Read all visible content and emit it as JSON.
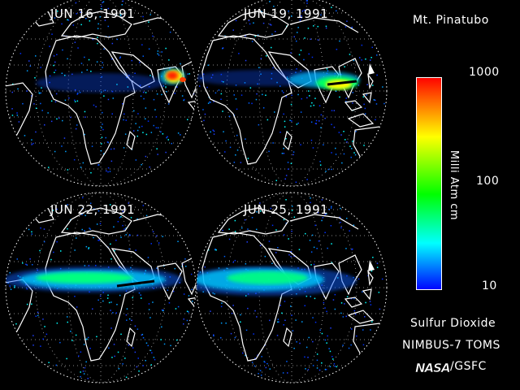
{
  "title": "Mt. Pinatubo",
  "panels": [
    {
      "date": "JUN 16, 1991"
    },
    {
      "date": "JUN 19, 1991"
    },
    {
      "date": "JUN 22, 1991"
    },
    {
      "date": "JUN 25, 1991"
    }
  ],
  "colorbar": {
    "max_label": "1000",
    "mid_label": "100",
    "min_label": "10",
    "units": "Milli Atm cm",
    "colors": [
      "#ff0000",
      "#ff8000",
      "#ffff00",
      "#00ff00",
      "#00ffff",
      "#0000ff"
    ]
  },
  "footer": {
    "quantity": "Sulfur Dioxide",
    "instrument": "NIMBUS-7 TOMS",
    "agency_logo": "NASA",
    "agency": "/GSFC"
  }
}
